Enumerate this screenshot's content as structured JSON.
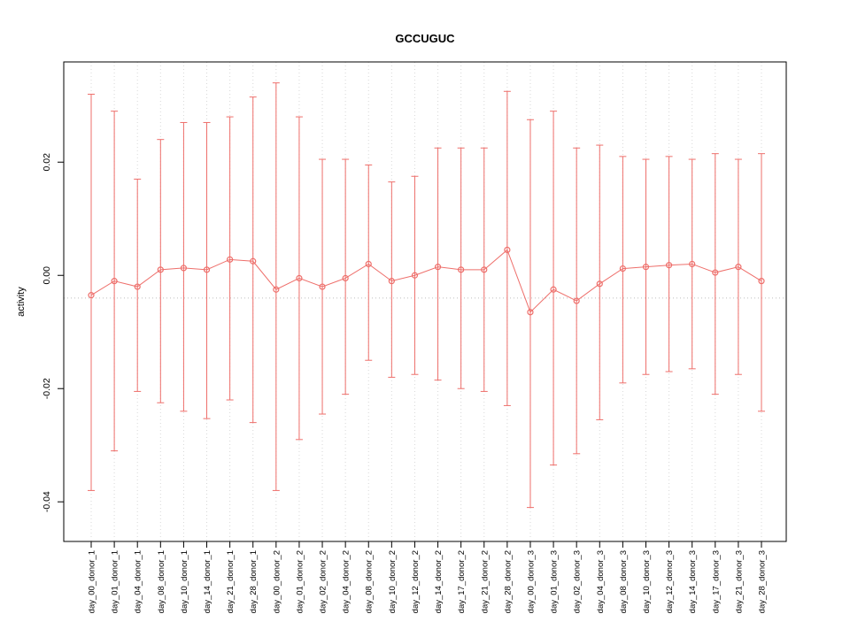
{
  "figure": {
    "background": "#ffffff"
  },
  "chart_data": {
    "type": "line",
    "title": "GCCUGUC",
    "xlabel": "",
    "ylabel": "activity",
    "ylim": [
      -0.047,
      0.0377
    ],
    "grid": "vertical-dotted",
    "legend": "none",
    "color": "#ee6f6b",
    "grid_color": "#d8d8d8",
    "reference_color": "#bdbdbd",
    "reference_line": -0.004,
    "yticks": [
      {
        "value": 0.02,
        "label": "0.02"
      },
      {
        "value": 0.0,
        "label": "0.00"
      },
      {
        "value": -0.02,
        "label": "-0.02"
      },
      {
        "value": -0.04,
        "label": "-0.04"
      }
    ],
    "categories": [
      "day_00_donor_1",
      "day_01_donor_1",
      "day_04_donor_1",
      "day_08_donor_1",
      "day_10_donor_1",
      "day_14_donor_1",
      "day_21_donor_1",
      "day_28_donor_1",
      "day_00_donor_2",
      "day_01_donor_2",
      "day_02_donor_2",
      "day_04_donor_2",
      "day_08_donor_2",
      "day_10_donor_2",
      "day_12_donor_2",
      "day_14_donor_2",
      "day_17_donor_2",
      "day_21_donor_2",
      "day_28_donor_2",
      "day_00_donor_3",
      "day_01_donor_3",
      "day_02_donor_3",
      "day_04_donor_3",
      "day_08_donor_3",
      "day_10_donor_3",
      "day_12_donor_3",
      "day_14_donor_3",
      "day_17_donor_3",
      "day_21_donor_3",
      "day_28_donor_3"
    ],
    "series": [
      {
        "name": "activity",
        "values": [
          -0.0035,
          -0.001,
          -0.002,
          0.001,
          0.0013,
          0.001,
          0.0028,
          0.0025,
          -0.0025,
          -0.0005,
          -0.002,
          -0.0005,
          0.002,
          -0.001,
          0.0,
          0.0015,
          0.001,
          0.001,
          0.0045,
          -0.0065,
          -0.0025,
          -0.0045,
          -0.0015,
          0.0012,
          0.0015,
          0.0018,
          0.002,
          0.0005,
          0.0015,
          -0.001
        ],
        "upper": [
          0.032,
          0.029,
          0.017,
          0.024,
          0.027,
          0.027,
          0.028,
          0.0315,
          0.034,
          0.028,
          0.0205,
          0.0205,
          0.0195,
          0.0165,
          0.0175,
          0.0225,
          0.0225,
          0.0225,
          0.0325,
          0.0275,
          0.029,
          0.0225,
          0.023,
          0.021,
          0.0205,
          0.021,
          0.0205,
          0.0215,
          0.0205,
          0.0215
        ],
        "lower": [
          -0.038,
          -0.031,
          -0.0205,
          -0.0225,
          -0.024,
          -0.0253,
          -0.022,
          -0.026,
          -0.038,
          -0.029,
          -0.0245,
          -0.021,
          -0.015,
          -0.018,
          -0.0175,
          -0.0185,
          -0.02,
          -0.0205,
          -0.023,
          -0.041,
          -0.0335,
          -0.0315,
          -0.0255,
          -0.019,
          -0.0175,
          -0.017,
          -0.0165,
          -0.021,
          -0.0175,
          -0.024
        ]
      }
    ]
  }
}
